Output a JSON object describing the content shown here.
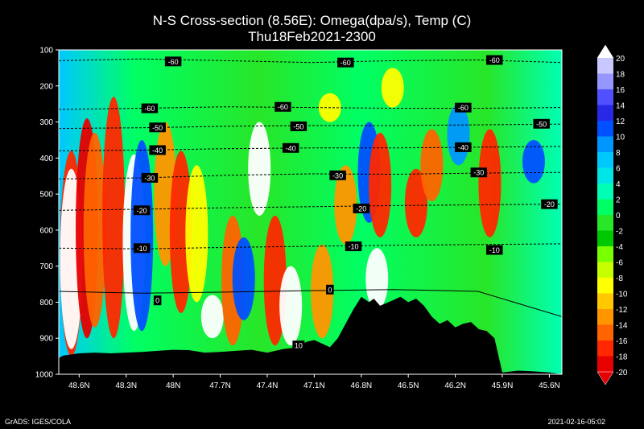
{
  "chart_data": {
    "type": "heatmap",
    "title": "N-S Cross-section (8.56E): Omega(dpa/s), Temp (C)",
    "subtitle": "Thu18Feb2021-2300",
    "x_ticks": [
      "48.6N",
      "48.3N",
      "48N",
      "47.7N",
      "47.4N",
      "47.1N",
      "46.8N",
      "46.5N",
      "46.2N",
      "45.9N",
      "45.6N"
    ],
    "y_ticks": [
      100,
      200,
      300,
      400,
      500,
      600,
      700,
      800,
      900,
      1000
    ],
    "ylim": [
      100,
      1000
    ],
    "y_reversed": true,
    "colorbar": {
      "levels": [
        20,
        18,
        16,
        14,
        12,
        10,
        8,
        6,
        4,
        2,
        0,
        -2,
        -4,
        -6,
        -8,
        -10,
        -12,
        -14,
        -16,
        -18,
        -20
      ],
      "colors": [
        "#ffffff",
        "#c8c8ff",
        "#9696ff",
        "#5050ff",
        "#2828e6",
        "#0050ff",
        "#0096ff",
        "#00c8ff",
        "#00e6e6",
        "#00ffb4",
        "#00ff64",
        "#28e628",
        "#00c800",
        "#78ff00",
        "#c8ff00",
        "#ffff00",
        "#ffc800",
        "#ff9600",
        "#ff6400",
        "#ff2800",
        "#e60000"
      ]
    },
    "temp_isotherms": [
      {
        "label": "-60",
        "pressure": [
          130,
          125,
          130,
          135,
          130,
          128,
          135
        ]
      },
      {
        "label": "-60",
        "pressure": [
          265,
          262,
          258,
          260,
          262,
          262,
          260
        ]
      },
      {
        "label": "-50",
        "pressure": [
          318,
          316,
          312,
          310,
          310,
          308,
          306
        ]
      },
      {
        "label": "-40",
        "pressure": [
          380,
          378,
          374,
          372,
          372,
          370,
          368
        ]
      },
      {
        "label": "-30",
        "pressure": [
          458,
          455,
          448,
          444,
          445,
          442,
          440
        ]
      },
      {
        "label": "-20",
        "pressure": [
          545,
          542,
          538,
          535,
          532,
          530,
          528
        ]
      },
      {
        "label": "-10",
        "pressure": [
          650,
          652,
          648,
          645,
          642,
          640,
          638
        ]
      },
      {
        "label": "0",
        "pressure": [
          770,
          775,
          772,
          768,
          765,
          770,
          840
        ]
      }
    ],
    "contour_labels": [
      {
        "text": "-60",
        "lat": 48.0,
        "p": 132
      },
      {
        "text": "-60",
        "lat": 46.9,
        "p": 135
      },
      {
        "text": "-60",
        "lat": 45.95,
        "p": 128
      },
      {
        "text": "-60",
        "lat": 48.15,
        "p": 262
      },
      {
        "text": "-60",
        "lat": 47.3,
        "p": 258
      },
      {
        "text": "-60",
        "lat": 46.15,
        "p": 260
      },
      {
        "text": "-50",
        "lat": 48.1,
        "p": 315
      },
      {
        "text": "-50",
        "lat": 47.2,
        "p": 312
      },
      {
        "text": "-50",
        "lat": 45.65,
        "p": 305
      },
      {
        "text": "-40",
        "lat": 48.1,
        "p": 378
      },
      {
        "text": "-40",
        "lat": 47.25,
        "p": 372
      },
      {
        "text": "-40",
        "lat": 46.15,
        "p": 370
      },
      {
        "text": "-30",
        "lat": 48.15,
        "p": 455
      },
      {
        "text": "-30",
        "lat": 46.95,
        "p": 448
      },
      {
        "text": "-30",
        "lat": 46.05,
        "p": 440
      },
      {
        "text": "-20",
        "lat": 48.2,
        "p": 545
      },
      {
        "text": "-20",
        "lat": 46.8,
        "p": 540
      },
      {
        "text": "-20",
        "lat": 45.6,
        "p": 528
      },
      {
        "text": "-10",
        "lat": 48.2,
        "p": 650
      },
      {
        "text": "-10",
        "lat": 46.85,
        "p": 645
      },
      {
        "text": "-10",
        "lat": 45.95,
        "p": 655
      },
      {
        "text": "0",
        "lat": 48.1,
        "p": 795
      },
      {
        "text": "0",
        "lat": 47.0,
        "p": 765
      },
      {
        "text": "10",
        "lat": 47.2,
        "p": 920
      }
    ],
    "terrain_pressure": [
      [
        48.73,
        955
      ],
      [
        48.7,
        948
      ],
      [
        48.6,
        942
      ],
      [
        48.5,
        940
      ],
      [
        48.4,
        942
      ],
      [
        48.3,
        940
      ],
      [
        48.2,
        938
      ],
      [
        48.1,
        935
      ],
      [
        48.0,
        932
      ],
      [
        47.9,
        933
      ],
      [
        47.8,
        940
      ],
      [
        47.7,
        938
      ],
      [
        47.6,
        935
      ],
      [
        47.5,
        932
      ],
      [
        47.4,
        940
      ],
      [
        47.3,
        930
      ],
      [
        47.2,
        925
      ],
      [
        47.15,
        910
      ],
      [
        47.1,
        905
      ],
      [
        47.05,
        915
      ],
      [
        47.0,
        925
      ],
      [
        46.95,
        900
      ],
      [
        46.9,
        860
      ],
      [
        46.85,
        820
      ],
      [
        46.8,
        785
      ],
      [
        46.75,
        800
      ],
      [
        46.72,
        790
      ],
      [
        46.68,
        810
      ],
      [
        46.6,
        795
      ],
      [
        46.55,
        785
      ],
      [
        46.5,
        800
      ],
      [
        46.45,
        790
      ],
      [
        46.4,
        810
      ],
      [
        46.35,
        840
      ],
      [
        46.3,
        860
      ],
      [
        46.25,
        850
      ],
      [
        46.2,
        870
      ],
      [
        46.15,
        860
      ],
      [
        46.1,
        855
      ],
      [
        46.05,
        875
      ],
      [
        46.0,
        880
      ],
      [
        45.95,
        900
      ],
      [
        45.9,
        995
      ],
      [
        45.8,
        990
      ],
      [
        45.7,
        992
      ],
      [
        45.6,
        995
      ],
      [
        45.52,
        1000
      ]
    ]
  },
  "footer": {
    "left": "GrADS: IGES/COLA",
    "right": "2021-02-16-05:02"
  }
}
